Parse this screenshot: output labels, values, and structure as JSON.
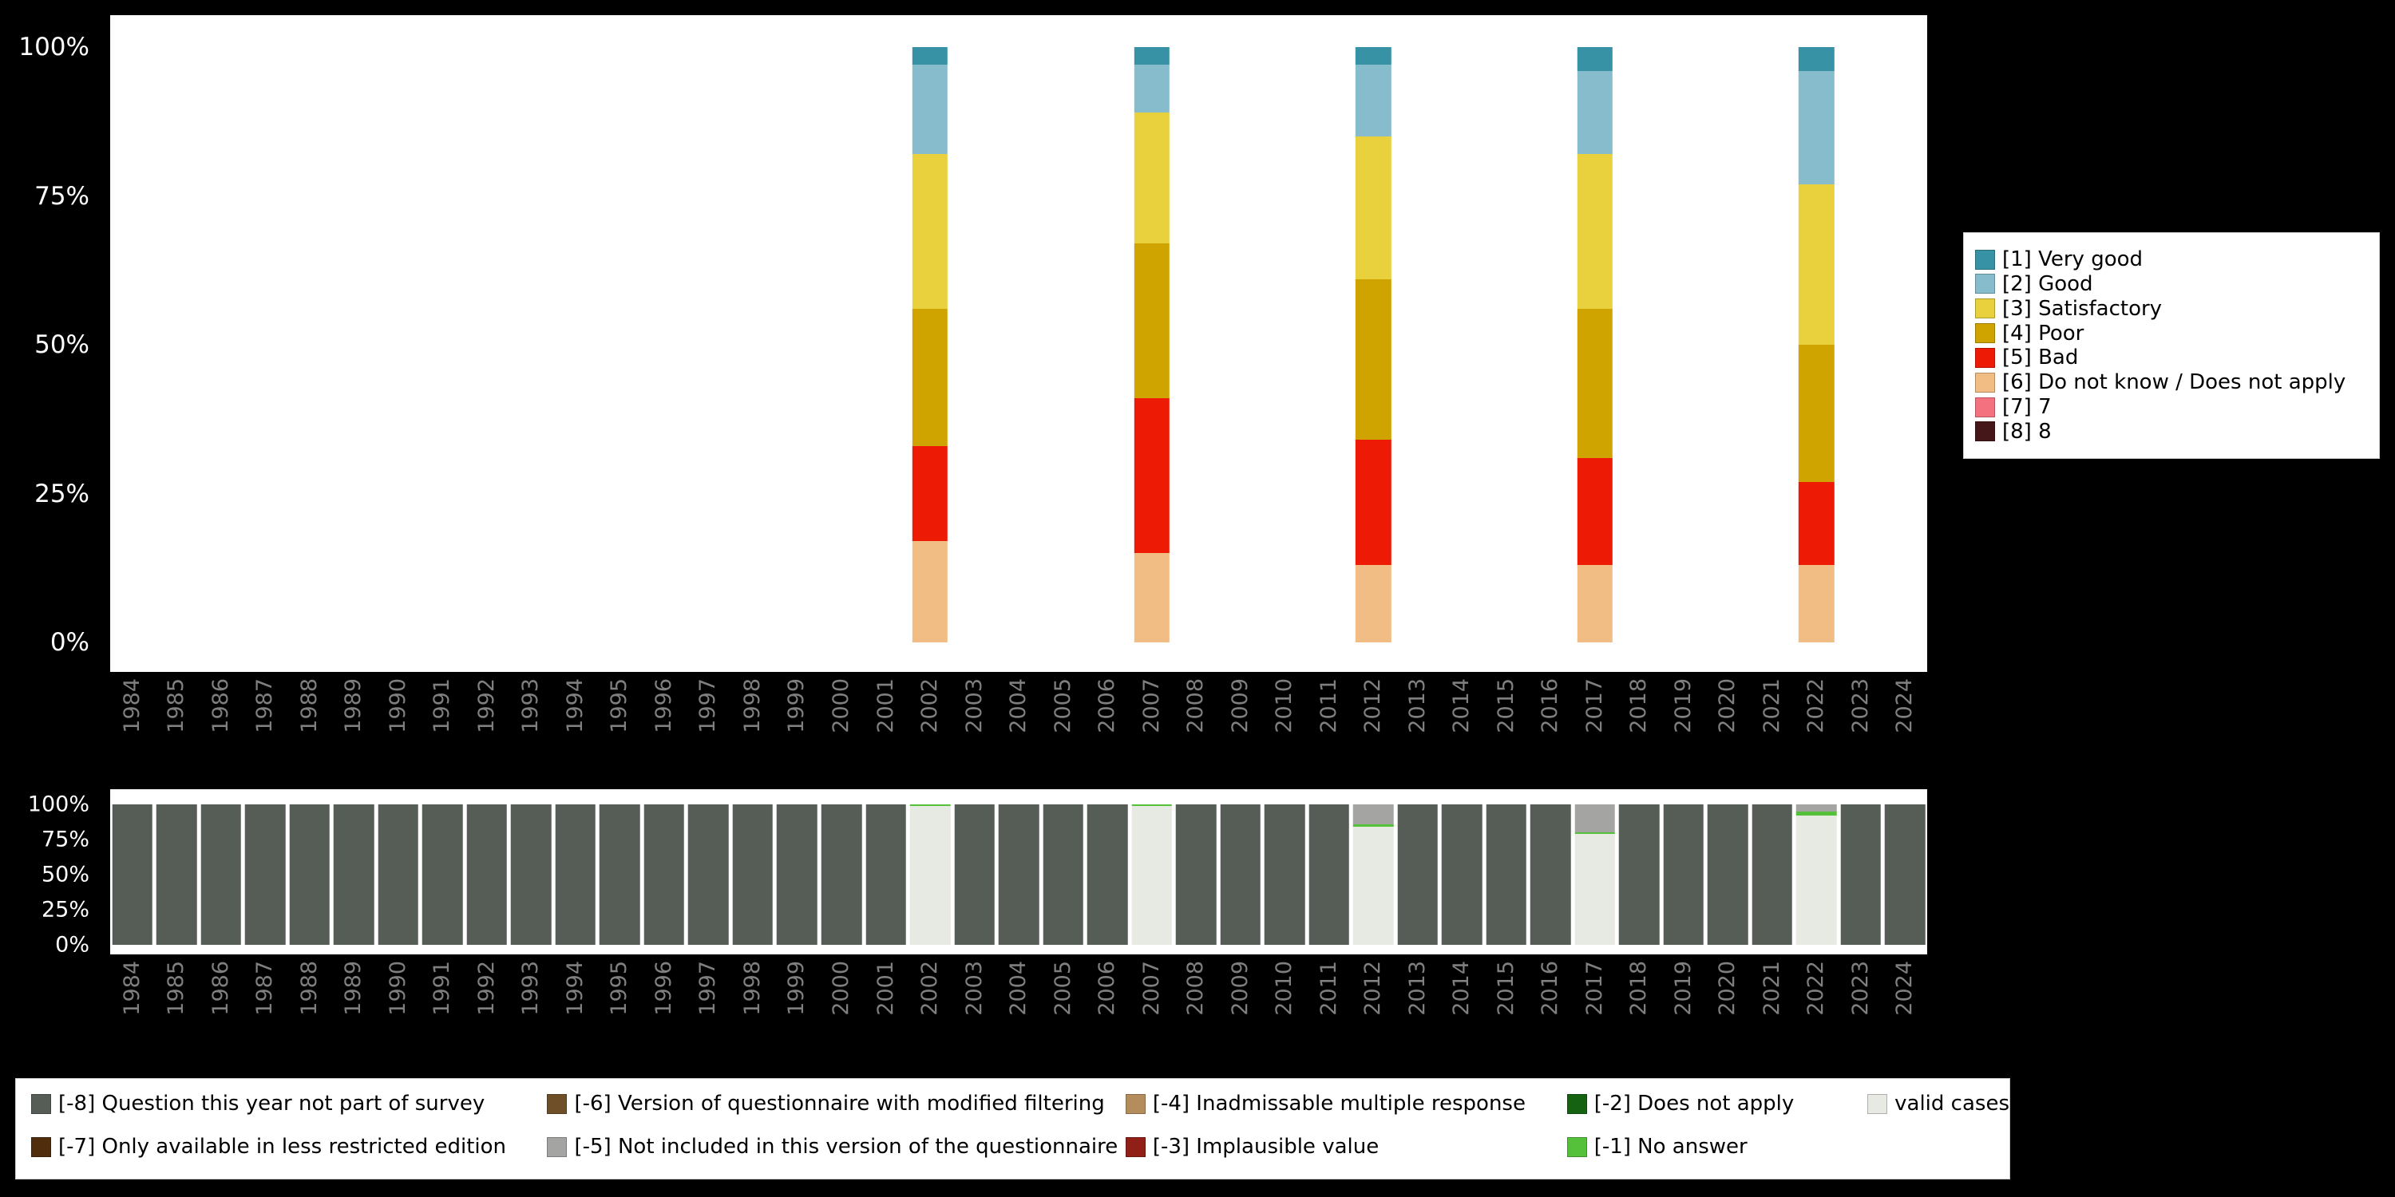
{
  "colors": {
    "background": "#000000",
    "panel": "#ffffff",
    "y_tick_text": "#ffffff",
    "x_tick_text": "#7f7f7f",
    "legend_background": "#ffffff",
    "legend_text": "#000000"
  },
  "chart_data": [
    {
      "id": "answer-distribution-by-year",
      "type": "bar",
      "stacked": true,
      "unit": "percent",
      "ylim": [
        0,
        100
      ],
      "yticks": [
        "0%",
        "25%",
        "50%",
        "75%",
        "100%"
      ],
      "grid": false,
      "legend_position": "right",
      "stack_order": "reverse-legend",
      "categories": [
        "1984",
        "1985",
        "1986",
        "1987",
        "1988",
        "1989",
        "1990",
        "1991",
        "1992",
        "1993",
        "1994",
        "1995",
        "1996",
        "1997",
        "1998",
        "1999",
        "2000",
        "2001",
        "2002",
        "2003",
        "2004",
        "2005",
        "2006",
        "2007",
        "2008",
        "2009",
        "2010",
        "2011",
        "2012",
        "2013",
        "2014",
        "2015",
        "2016",
        "2017",
        "2018",
        "2019",
        "2020",
        "2021",
        "2022",
        "2023",
        "2024"
      ],
      "legend": [
        {
          "label": "[1] Very good",
          "color": "#3792a6"
        },
        {
          "label": "[2] Good",
          "color": "#86bccb"
        },
        {
          "label": "[3] Satisfactory",
          "color": "#e8d13d"
        },
        {
          "label": "[4] Poor",
          "color": "#d0a400"
        },
        {
          "label": "[5] Bad",
          "color": "#ed1b05"
        },
        {
          "label": "[6] Do not know / Does not apply",
          "color": "#f1bd84"
        },
        {
          "label": "[7] 7",
          "color": "#f4717f"
        },
        {
          "label": "[8] 8",
          "color": "#451719"
        }
      ],
      "bars": {
        "2002": {
          "[1] Very good": 3,
          "[2] Good": 15,
          "[3] Satisfactory": 26,
          "[4] Poor": 23,
          "[5] Bad": 16,
          "[6] Do not know / Does not apply": 17
        },
        "2007": {
          "[1] Very good": 3,
          "[2] Good": 8,
          "[3] Satisfactory": 22,
          "[4] Poor": 26,
          "[5] Bad": 26,
          "[6] Do not know / Does not apply": 15
        },
        "2012": {
          "[1] Very good": 3,
          "[2] Good": 12,
          "[3] Satisfactory": 24,
          "[4] Poor": 27,
          "[5] Bad": 21,
          "[6] Do not know / Does not apply": 13
        },
        "2017": {
          "[1] Very good": 4,
          "[2] Good": 14,
          "[3] Satisfactory": 26,
          "[4] Poor": 25,
          "[5] Bad": 18,
          "[6] Do not know / Does not apply": 13
        },
        "2022": {
          "[1] Very good": 4,
          "[2] Good": 19,
          "[3] Satisfactory": 27,
          "[4] Poor": 23,
          "[5] Bad": 14,
          "[6] Do not know / Does not apply": 13
        }
      }
    },
    {
      "id": "missing-values-and-valid-cases-by-year",
      "type": "bar",
      "stacked": true,
      "unit": "percent",
      "ylim": [
        0,
        100
      ],
      "yticks": [
        "0%",
        "25%",
        "50%",
        "75%",
        "100%"
      ],
      "grid": false,
      "legend_position": "bottom",
      "stack_order": "reverse-legend",
      "categories": [
        "1984",
        "1985",
        "1986",
        "1987",
        "1988",
        "1989",
        "1990",
        "1991",
        "1992",
        "1993",
        "1994",
        "1995",
        "1996",
        "1997",
        "1998",
        "1999",
        "2000",
        "2001",
        "2002",
        "2003",
        "2004",
        "2005",
        "2006",
        "2007",
        "2008",
        "2009",
        "2010",
        "2011",
        "2012",
        "2013",
        "2014",
        "2015",
        "2016",
        "2017",
        "2018",
        "2019",
        "2020",
        "2021",
        "2022",
        "2023",
        "2024"
      ],
      "legend": [
        {
          "label": "[-8] Question this year not part of survey",
          "color": "#565d57"
        },
        {
          "label": "[-7] Only available in less restricted edition",
          "color": "#4f2d0d"
        },
        {
          "label": "[-6] Version of questionnaire with modified filtering",
          "color": "#6f4f28"
        },
        {
          "label": "[-5] Not included in this version of the questionnaire",
          "color": "#a4a5a2"
        },
        {
          "label": "[-4] Inadmissable multiple response",
          "color": "#b48d5c"
        },
        {
          "label": "[-3] Implausible value",
          "color": "#8f1f17"
        },
        {
          "label": "[-2] Does not apply",
          "color": "#156312"
        },
        {
          "label": "[-1] No answer",
          "color": "#55c13a"
        },
        {
          "label": "valid cases",
          "color": "#e7eae3"
        }
      ],
      "legend_columns": [
        [
          0,
          1
        ],
        [
          2,
          3
        ],
        [
          4,
          5
        ],
        [
          6,
          7
        ],
        [
          8
        ]
      ],
      "bars": {
        "2002": {
          "valid cases": 99,
          "[-1] No answer": 1
        },
        "2007": {
          "valid cases": 99,
          "[-1] No answer": 1
        },
        "2012": {
          "valid cases": 84,
          "[-1] No answer": 2,
          "[-5] Not included in this version of the questionnaire": 14
        },
        "2017": {
          "valid cases": 79,
          "[-1] No answer": 1,
          "[-5] Not included in this version of the questionnaire": 20
        },
        "2022": {
          "valid cases": 92,
          "[-1] No answer": 3,
          "[-5] Not included in this version of the questionnaire": 5
        },
        "default": {
          "[-8] Question this year not part of survey": 100
        }
      }
    }
  ]
}
